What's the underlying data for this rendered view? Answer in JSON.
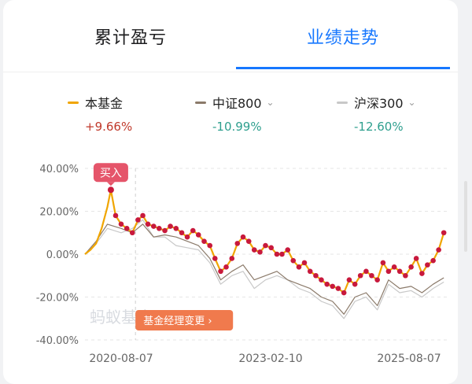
{
  "tabs": {
    "left": "累计盈亏",
    "right": "业绩走势"
  },
  "legend": [
    {
      "name": "本基金",
      "value": "+9.66%",
      "color": "#f0a500",
      "value_color": "#c0392b",
      "has_dropdown": false
    },
    {
      "name": "中证800",
      "value": "-10.99%",
      "color": "#8b7a6a",
      "value_color": "#2e9f8e",
      "has_dropdown": true
    },
    {
      "name": "沪深300",
      "value": "-12.60%",
      "color": "#c8c8c8",
      "value_color": "#2e9f8e",
      "has_dropdown": true
    }
  ],
  "colors": {
    "accent": "#1677ff",
    "fund": "#f0a500",
    "fund_dots": "#c8193c",
    "buy_tag": "#e5556a",
    "manager_tag": "#f07a4d"
  },
  "chart_data": {
    "type": "line",
    "ylabel": "",
    "xlabel": "",
    "y_ticks": [
      "40.00%",
      "20.00%",
      "0.00%",
      "-20.00%",
      "-40.00%"
    ],
    "ylim": [
      -40,
      40
    ],
    "x_ticks": [
      "2020-08-07",
      "2023-02-10",
      "2025-08-07"
    ],
    "xlim": [
      "2020-04-01",
      "2025-09-01"
    ],
    "series": [
      {
        "name": "本基金",
        "x": [
          "2020-04-01",
          "2020-05-01",
          "2020-06-01",
          "2020-07-01",
          "2020-08-01",
          "2020-08-20",
          "2020-09-15",
          "2020-10-15",
          "2020-11-15",
          "2020-12-15",
          "2021-01-15",
          "2021-02-10",
          "2021-03-10",
          "2021-04-10",
          "2021-05-10",
          "2021-06-10",
          "2021-07-10",
          "2021-08-10",
          "2021-09-10",
          "2021-10-10",
          "2021-11-10",
          "2021-12-10",
          "2022-01-10",
          "2022-02-10",
          "2022-03-10",
          "2022-04-10",
          "2022-05-10",
          "2022-06-10",
          "2022-07-10",
          "2022-08-10",
          "2022-09-10",
          "2022-10-10",
          "2022-11-10",
          "2022-12-10",
          "2023-01-10",
          "2023-02-10",
          "2023-03-10",
          "2023-04-10",
          "2023-05-10",
          "2023-06-10",
          "2023-07-10",
          "2023-08-10",
          "2023-09-10",
          "2023-10-10",
          "2023-11-10",
          "2023-12-10",
          "2024-01-10",
          "2024-02-10",
          "2024-03-10",
          "2024-04-10",
          "2024-05-10",
          "2024-06-10",
          "2024-07-10",
          "2024-08-10",
          "2024-09-10",
          "2024-10-10",
          "2024-11-10",
          "2024-12-10",
          "2025-01-10",
          "2025-02-10",
          "2025-03-10",
          "2025-04-10",
          "2025-05-10",
          "2025-06-10",
          "2025-07-10",
          "2025-08-07"
        ],
        "values": [
          0,
          2,
          5,
          12,
          22,
          30,
          18,
          14,
          12,
          10,
          16,
          18,
          14,
          13,
          12,
          11,
          13,
          12,
          10,
          8,
          11,
          9,
          6,
          4,
          -2,
          -8,
          -6,
          -2,
          5,
          8,
          6,
          2,
          1,
          4,
          3,
          0,
          0,
          2,
          -3,
          -6,
          -4,
          -8,
          -10,
          -12,
          -14,
          -15,
          -16,
          -18,
          -12,
          -14,
          -10,
          -8,
          -10,
          -12,
          -4,
          -8,
          -6,
          -8,
          -10,
          -6,
          -2,
          -9,
          -5,
          -3,
          2,
          10
        ]
      },
      {
        "name": "中证800",
        "x": [
          "2020-04-01",
          "2020-06-01",
          "2020-08-01",
          "2020-10-15",
          "2020-12-15",
          "2021-02-10",
          "2021-04-10",
          "2021-06-10",
          "2021-08-10",
          "2021-10-10",
          "2021-12-10",
          "2022-02-10",
          "2022-04-10",
          "2022-06-10",
          "2022-08-10",
          "2022-10-10",
          "2022-12-10",
          "2023-02-10",
          "2023-04-10",
          "2023-06-10",
          "2023-08-10",
          "2023-10-10",
          "2023-12-10",
          "2024-02-10",
          "2024-04-10",
          "2024-06-10",
          "2024-08-10",
          "2024-10-10",
          "2024-12-10",
          "2025-02-10",
          "2025-04-10",
          "2025-06-10",
          "2025-08-07"
        ],
        "values": [
          0,
          6,
          14,
          12,
          10,
          14,
          8,
          9,
          8,
          6,
          4,
          -2,
          -12,
          -8,
          -5,
          -12,
          -10,
          -8,
          -12,
          -14,
          -16,
          -20,
          -22,
          -28,
          -20,
          -18,
          -24,
          -12,
          -16,
          -15,
          -18,
          -14,
          -11
        ]
      },
      {
        "name": "沪深300",
        "x": [
          "2020-04-01",
          "2020-06-01",
          "2020-08-01",
          "2020-10-15",
          "2020-12-15",
          "2021-02-10",
          "2021-04-10",
          "2021-06-10",
          "2021-08-10",
          "2021-10-10",
          "2021-12-10",
          "2022-02-10",
          "2022-04-10",
          "2022-06-10",
          "2022-08-10",
          "2022-10-10",
          "2022-12-10",
          "2023-02-10",
          "2023-04-10",
          "2023-06-10",
          "2023-08-10",
          "2023-10-10",
          "2023-12-10",
          "2024-02-10",
          "2024-04-10",
          "2024-06-10",
          "2024-08-10",
          "2024-10-10",
          "2024-12-10",
          "2025-02-10",
          "2025-04-10",
          "2025-06-10",
          "2025-08-07"
        ],
        "values": [
          0,
          5,
          12,
          10,
          12,
          16,
          8,
          8,
          4,
          3,
          2,
          -4,
          -14,
          -10,
          -8,
          -16,
          -12,
          -10,
          -12,
          -16,
          -18,
          -22,
          -24,
          -30,
          -22,
          -20,
          -26,
          -14,
          -18,
          -17,
          -20,
          -16,
          -13
        ]
      }
    ],
    "annotations": [
      {
        "label": "买入",
        "x": "2020-08-20",
        "y": 30
      },
      {
        "label": "基金经理变更",
        "x": "2021-01-01"
      }
    ],
    "watermark": "蚂蚁基金",
    "grid": true,
    "legend_position": "top"
  }
}
